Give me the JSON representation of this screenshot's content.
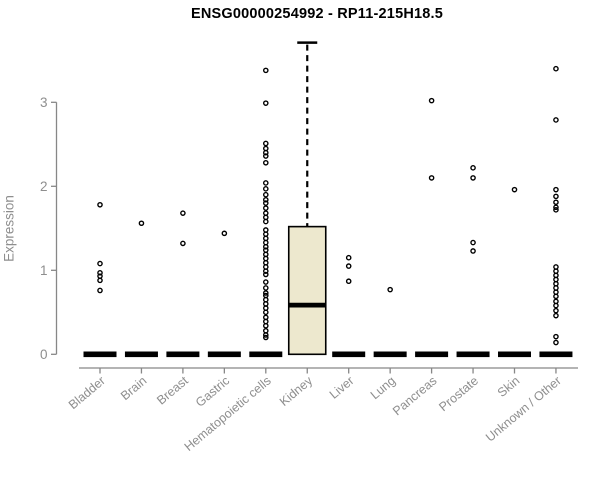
{
  "chart_data": {
    "type": "box",
    "title": "ENSG00000254992 - RP11-215H18.5",
    "ylabel": "Expression",
    "xlabel": "",
    "ylim": [
      0,
      3.8
    ],
    "yticks": [
      0,
      1,
      2,
      3
    ],
    "grid": false,
    "legend_position": null,
    "categories": [
      "Bladder",
      "Brain",
      "Breast",
      "Gastric",
      "Hematopoietic cells",
      "Kidney",
      "Liver",
      "Lung",
      "Pancreas",
      "Prostate",
      "Skin",
      "Unknown / Other"
    ],
    "series": [
      {
        "category": "Bladder",
        "box": {
          "q1": 0,
          "median": 0,
          "q3": 0,
          "whisker_low": 0,
          "whisker_high": 0
        },
        "points": [
          1.78,
          1.08,
          0.97,
          0.93,
          0.88,
          0.76
        ]
      },
      {
        "category": "Brain",
        "box": {
          "q1": 0,
          "median": 0,
          "q3": 0,
          "whisker_low": 0,
          "whisker_high": 0
        },
        "points": [
          1.56
        ]
      },
      {
        "category": "Breast",
        "box": {
          "q1": 0,
          "median": 0,
          "q3": 0,
          "whisker_low": 0,
          "whisker_high": 0
        },
        "points": [
          1.68,
          1.32
        ]
      },
      {
        "category": "Gastric",
        "box": {
          "q1": 0,
          "median": 0,
          "q3": 0,
          "whisker_low": 0,
          "whisker_high": 0
        },
        "points": [
          1.44
        ]
      },
      {
        "category": "Hematopoietic cells",
        "box": {
          "q1": 0,
          "median": 0,
          "q3": 0,
          "whisker_low": 0,
          "whisker_high": 0
        },
        "points": [
          3.38,
          2.99,
          2.51,
          2.45,
          2.4,
          2.36,
          2.28,
          2.04,
          1.97,
          1.9,
          1.84,
          1.8,
          1.74,
          1.68,
          1.63,
          1.58,
          1.48,
          1.43,
          1.38,
          1.33,
          1.28,
          1.24,
          1.19,
          1.14,
          1.09,
          1.04,
          0.99,
          0.95,
          0.86,
          0.79,
          0.73,
          0.7,
          0.65,
          0.6,
          0.55,
          0.5,
          0.44,
          0.39,
          0.34,
          0.28,
          0.23,
          0.2
        ]
      },
      {
        "category": "Kidney",
        "box": {
          "q1": 0,
          "median": 0.585,
          "q3": 1.52,
          "whisker_low": 0,
          "whisker_high": 3.71
        },
        "points": []
      },
      {
        "category": "Liver",
        "box": {
          "q1": 0,
          "median": 0,
          "q3": 0,
          "whisker_low": 0,
          "whisker_high": 0
        },
        "points": [
          1.15,
          1.05,
          0.87
        ]
      },
      {
        "category": "Lung",
        "box": {
          "q1": 0,
          "median": 0,
          "q3": 0,
          "whisker_low": 0,
          "whisker_high": 0
        },
        "points": [
          0.77
        ]
      },
      {
        "category": "Pancreas",
        "box": {
          "q1": 0,
          "median": 0,
          "q3": 0,
          "whisker_low": 0,
          "whisker_high": 0
        },
        "points": [
          3.02,
          2.1
        ]
      },
      {
        "category": "Prostate",
        "box": {
          "q1": 0,
          "median": 0,
          "q3": 0,
          "whisker_low": 0,
          "whisker_high": 0
        },
        "points": [
          2.22,
          2.1,
          1.33,
          1.23
        ]
      },
      {
        "category": "Skin",
        "box": {
          "q1": 0,
          "median": 0,
          "q3": 0,
          "whisker_low": 0,
          "whisker_high": 0
        },
        "points": [
          1.96
        ]
      },
      {
        "category": "Unknown / Other",
        "box": {
          "q1": 0,
          "median": 0,
          "q3": 0,
          "whisker_low": 0,
          "whisker_high": 0
        },
        "points": [
          3.4,
          2.79,
          1.96,
          1.88,
          1.81,
          1.75,
          1.72,
          1.04,
          0.99,
          0.94,
          0.89,
          0.84,
          0.79,
          0.74,
          0.69,
          0.63,
          0.58,
          0.52,
          0.46,
          0.21,
          0.14
        ]
      }
    ],
    "colors": {
      "title": "#000000",
      "axis": "#878787",
      "tick_label": "#8e8e8e",
      "axis_label": "#8e8e8e",
      "box_fill": "#ede8ce",
      "box_border": "#000000",
      "median": "#000000",
      "whisker": "#000000",
      "point": "#000000",
      "zero_bar": "#000000",
      "background": "#ffffff"
    }
  }
}
